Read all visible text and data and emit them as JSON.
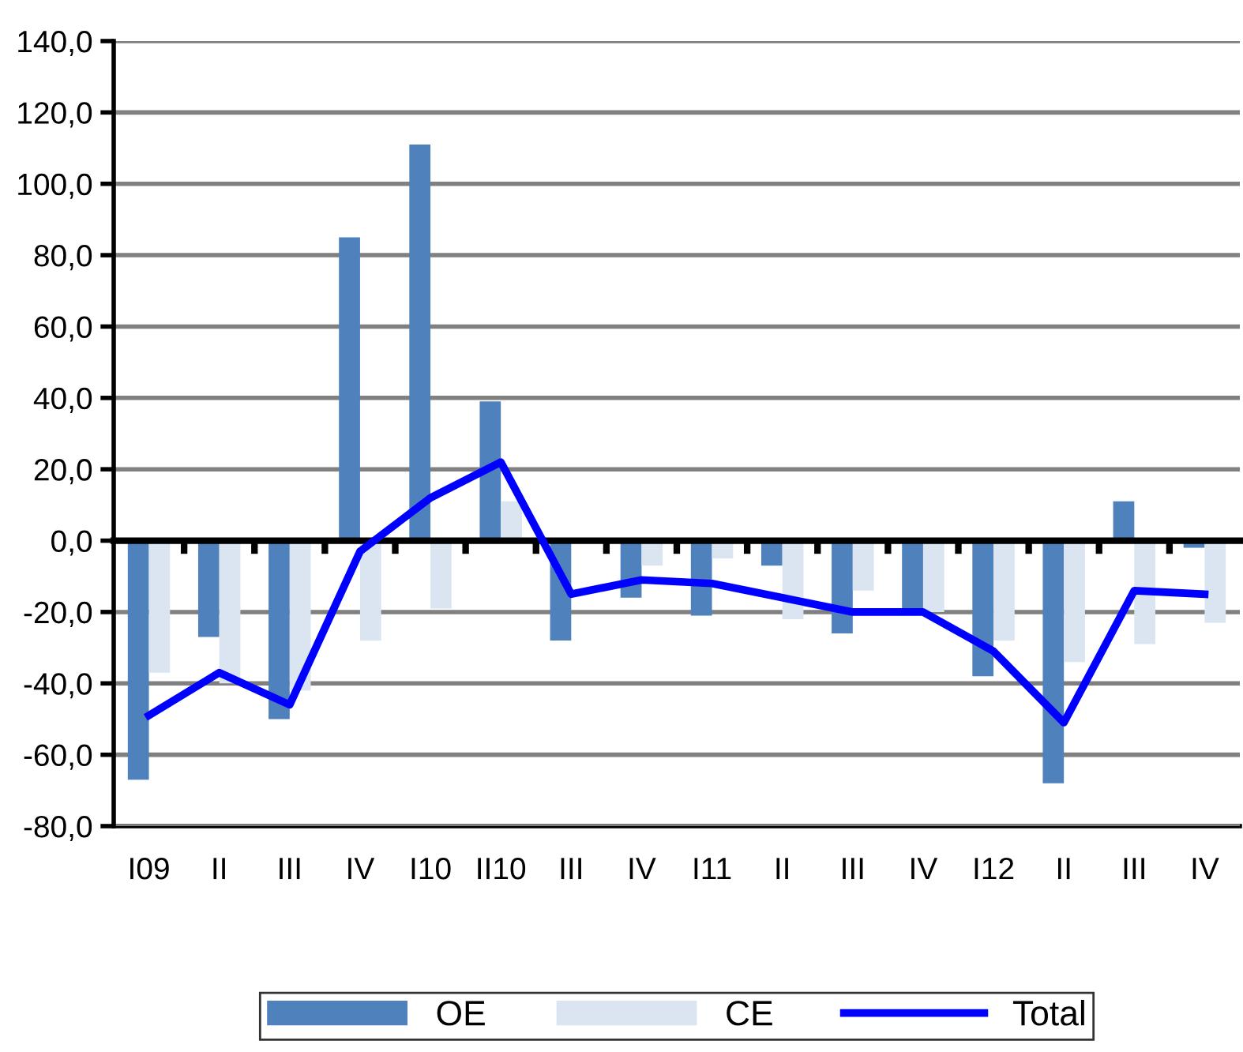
{
  "chart_data": {
    "type": "bar",
    "categories": [
      "I09",
      "II",
      "III",
      "IV",
      "I10",
      "II10",
      "III",
      "IV",
      "I11",
      "II",
      "III",
      "IV",
      "I12",
      "II",
      "III",
      "IV"
    ],
    "series": [
      {
        "name": "OE",
        "color": "#4f81bd",
        "values": [
          -67,
          -27,
          -50,
          85,
          111,
          39,
          -28,
          -16,
          -21,
          -7,
          -26,
          -20,
          -38,
          -68,
          11,
          -2
        ]
      },
      {
        "name": "CE",
        "color": "#dbe5f1",
        "values": [
          -37,
          -40,
          -42,
          -28,
          -19,
          11,
          null,
          -7,
          -5,
          -22,
          -14,
          -20,
          -28,
          -34,
          -29,
          -23
        ]
      },
      {
        "name": "Total",
        "type": "line",
        "color": "#0000ff",
        "values": [
          -49,
          -37,
          -46,
          -3,
          12,
          22,
          -15,
          -11,
          -12,
          -16,
          -20,
          -20,
          -31,
          -51,
          -14,
          -15
        ]
      }
    ],
    "ylim": [
      -80,
      140
    ],
    "yticks": [
      {
        "value": -80,
        "label": "-80,0"
      },
      {
        "value": -60,
        "label": "-60,0"
      },
      {
        "value": -40,
        "label": "-40,0"
      },
      {
        "value": -20,
        "label": "-20,0"
      },
      {
        "value": 0,
        "label": "0,0"
      },
      {
        "value": 20,
        "label": "20,0"
      },
      {
        "value": 40,
        "label": "40,0"
      },
      {
        "value": 60,
        "label": "60,0"
      },
      {
        "value": 80,
        "label": "80,0"
      },
      {
        "value": 100,
        "label": "100,0"
      },
      {
        "value": 120,
        "label": "120,0"
      },
      {
        "value": 140,
        "label": "140,0"
      }
    ],
    "grid": "y",
    "legend": "bottom",
    "marker": "none",
    "line_style": "solid"
  }
}
